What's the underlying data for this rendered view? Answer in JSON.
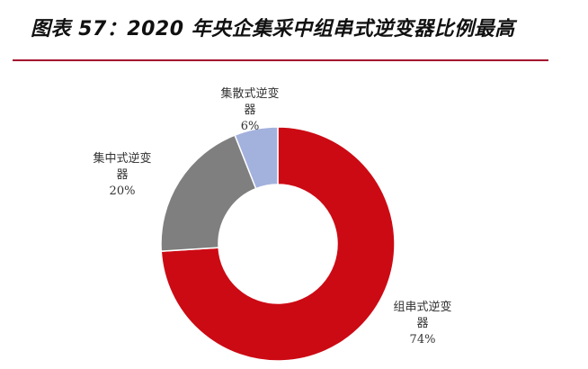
{
  "title": "图表 57：2020 年央企集采中组串式逆变器比例最高",
  "colors": {
    "rule": "#a3112e",
    "string": "#cc0a14",
    "central": "#7f7f7f",
    "distributed": "#a3b1dd"
  },
  "chart_data": {
    "type": "pie",
    "donut": true,
    "title": "",
    "slices": [
      {
        "name": "组串式逆变器",
        "label_line1": "组串式逆变",
        "label_line2": "器",
        "value": 74,
        "percent": "74%",
        "color": "#cc0a14"
      },
      {
        "name": "集中式逆变器",
        "label_line1": "集中式逆变",
        "label_line2": "器",
        "value": 20,
        "percent": "20%",
        "color": "#7f7f7f"
      },
      {
        "name": "集散式逆变器",
        "label_line1": "集散式逆变",
        "label_line2": "器",
        "value": 6,
        "percent": "6%",
        "color": "#a3b1dd"
      }
    ]
  }
}
